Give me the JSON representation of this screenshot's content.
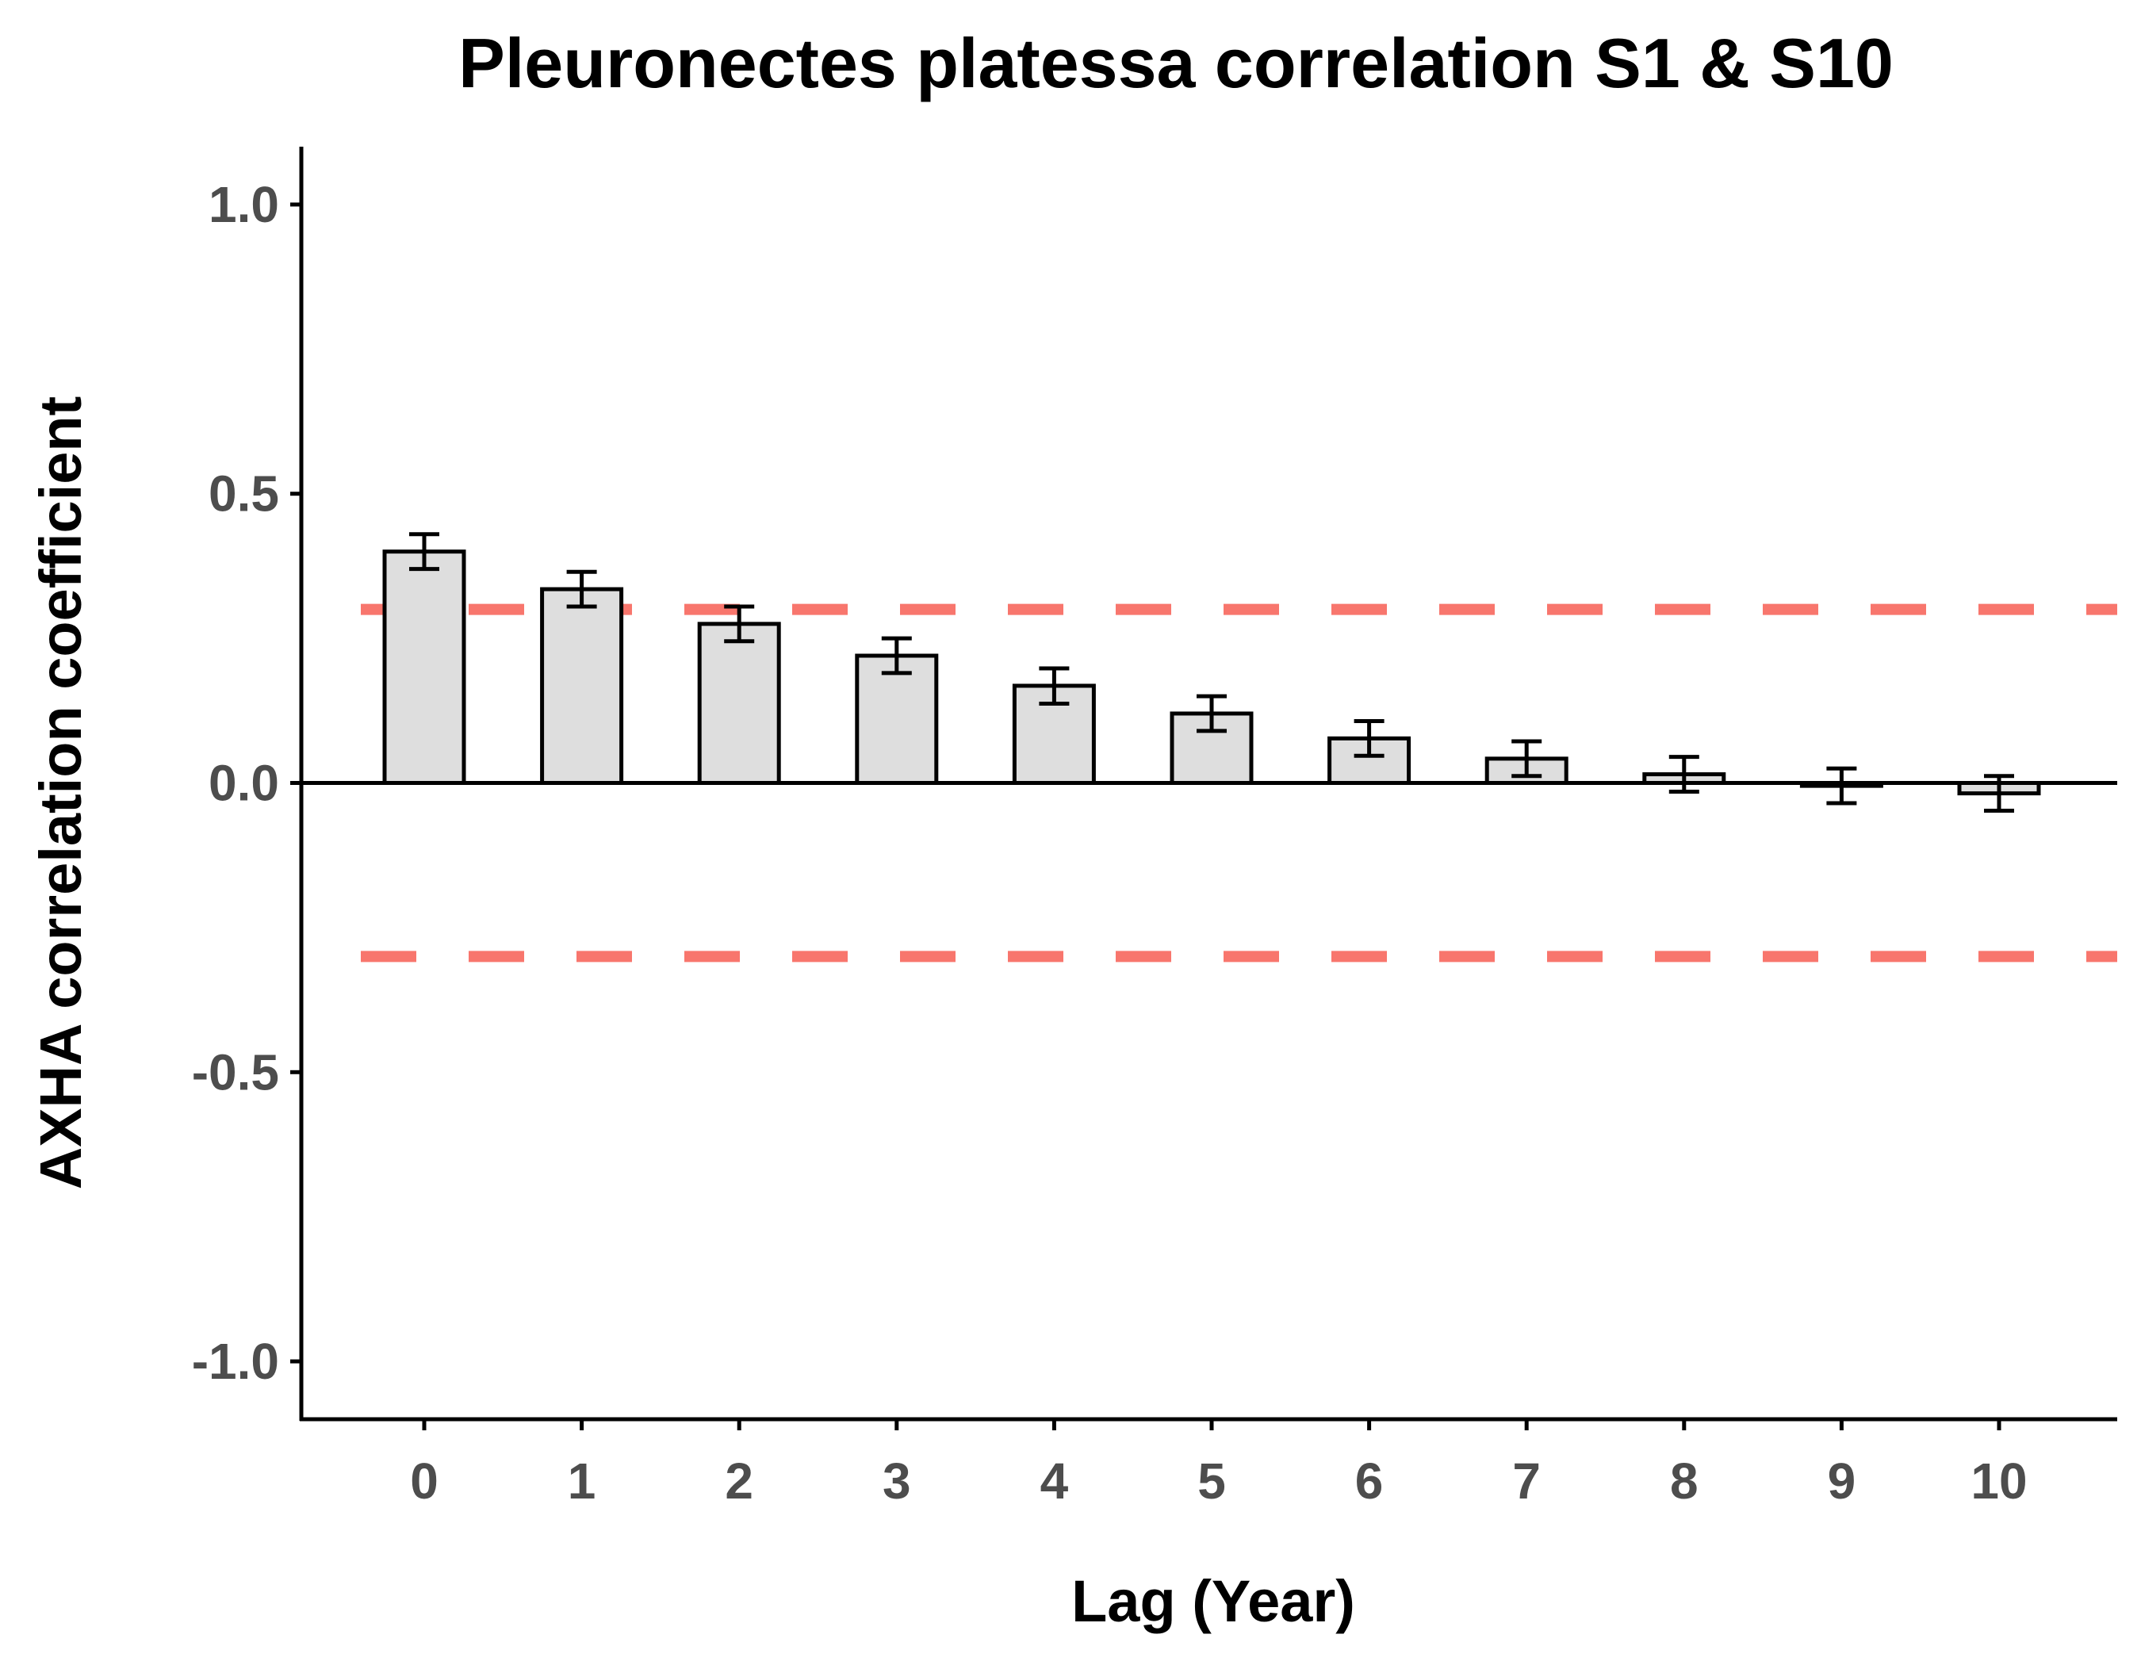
{
  "chart_data": {
    "type": "bar",
    "title": "Pleuronectes platessa correlation S1 & S10",
    "xlabel": "Lag (Year)",
    "ylabel": "AXHA correlation coefficient",
    "categories": [
      "0",
      "1",
      "2",
      "3",
      "4",
      "5",
      "6",
      "7",
      "8",
      "9",
      "10"
    ],
    "values": [
      0.4,
      0.335,
      0.275,
      0.22,
      0.168,
      0.12,
      0.077,
      0.042,
      0.015,
      -0.005,
      -0.018
    ],
    "error_low": [
      0.37,
      0.305,
      0.245,
      0.19,
      0.137,
      0.09,
      0.047,
      0.012,
      -0.015,
      -0.035,
      -0.048
    ],
    "error_high": [
      0.43,
      0.365,
      0.305,
      0.25,
      0.198,
      0.15,
      0.107,
      0.072,
      0.045,
      0.025,
      0.012
    ],
    "ylim": [
      -1.1,
      1.1
    ],
    "yticks": [
      -1.0,
      -0.5,
      0.0,
      0.5,
      1.0
    ],
    "ytick_labels": [
      "-1.0",
      "-0.5",
      "0.0",
      "0.5",
      "1.0"
    ],
    "reference_lines": [
      0.3,
      -0.3
    ],
    "grid": false,
    "colors": {
      "bar_fill": "#dedede",
      "bar_stroke": "#000000",
      "reference_line": "#f8766d",
      "axis": "#000000",
      "tick_label": "#4d4d4d"
    }
  }
}
